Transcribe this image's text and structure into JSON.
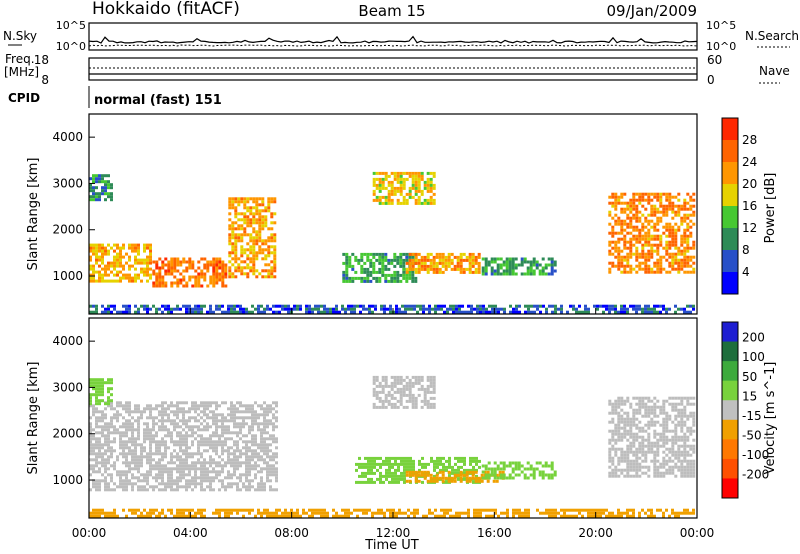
{
  "header": {
    "station": "Hokkaido (fitACF)",
    "beam": "Beam 15",
    "date": "09/Jan/2009"
  },
  "noise_panel": {
    "left_label": "N.Sky",
    "right_label": "N.Search",
    "left_ticks": [
      "10^5",
      "10^0"
    ],
    "right_ticks": [
      "10^5",
      "10^0"
    ]
  },
  "freq_panel": {
    "left_label_1": "Freq.",
    "left_label_2": "[MHz]",
    "right_label": "Nave",
    "left_ticks": [
      "18",
      "8"
    ],
    "right_ticks": [
      "60",
      "0"
    ],
    "freq_mhz": 8.0,
    "nave": 8
  },
  "cpid": {
    "label": "CPID",
    "text": "normal (fast) 151"
  },
  "x_axis": {
    "title": "Time UT",
    "tick_labels": [
      "00:00",
      "04:00",
      "08:00",
      "12:00",
      "16:00",
      "20:00",
      "00:00"
    ]
  },
  "colors": {
    "power_scale": [
      "#0000ff",
      "#2850c8",
      "#2e8b57",
      "#46c832",
      "#e6d200",
      "#ff9600",
      "#ff6400",
      "#ff2800"
    ],
    "velocity_scale": [
      "#1e1ed2",
      "#1e6e3c",
      "#3caa3c",
      "#78d23c",
      "#c0c0c0",
      "#f0a000",
      "#ff7800",
      "#ff5000",
      "#ff0000"
    ],
    "gray": "#bdbdbd"
  },
  "chart_data": [
    {
      "type": "heatmap",
      "title": "",
      "xlabel": "",
      "ylabel": "Slant Range [km]",
      "xlim": [
        0,
        24
      ],
      "ylim": [
        180,
        4500
      ],
      "y_ticks": [
        1000,
        2000,
        3000,
        4000
      ],
      "colorbar": {
        "label": "Power [dB]",
        "tick_labels": [
          "4",
          "8",
          "12",
          "16",
          "20",
          "24",
          "28"
        ],
        "range": [
          0,
          30
        ]
      },
      "regions": [
        {
          "t": [
            0.0,
            2.5
          ],
          "r": [
            820,
            1700
          ],
          "v": 19
        },
        {
          "t": [
            0.0,
            1.0
          ],
          "r": [
            2600,
            3200
          ],
          "v": 10
        },
        {
          "t": [
            2.5,
            5.5
          ],
          "r": [
            700,
            1400
          ],
          "v": 23
        },
        {
          "t": [
            5.5,
            7.5
          ],
          "r": [
            900,
            2700
          ],
          "v": 20
        },
        {
          "t": [
            11.2,
            13.8
          ],
          "r": [
            2500,
            3250
          ],
          "v": 18
        },
        {
          "t": [
            10.0,
            13.0
          ],
          "r": [
            800,
            1500
          ],
          "v": 11
        },
        {
          "t": [
            12.5,
            15.5
          ],
          "r": [
            1000,
            1500
          ],
          "v": 20
        },
        {
          "t": [
            15.5,
            18.5
          ],
          "r": [
            1000,
            1400
          ],
          "v": 11
        },
        {
          "t": [
            20.5,
            24.0
          ],
          "r": [
            1000,
            2800
          ],
          "v": 22
        },
        {
          "t": [
            0.0,
            24.0
          ],
          "r": [
            180,
            380
          ],
          "v": 6
        }
      ]
    },
    {
      "type": "heatmap",
      "title": "",
      "xlabel": "Time UT",
      "ylabel": "Slant Range [km]",
      "xlim": [
        0,
        24
      ],
      "ylim": [
        180,
        4500
      ],
      "y_ticks": [
        1000,
        2000,
        3000,
        4000
      ],
      "colorbar": {
        "label": "Velocity [m s^-1]",
        "tick_labels": [
          "200",
          "100",
          "50",
          "15",
          "-15",
          "-50",
          "-100",
          "-200"
        ],
        "range": [
          -250,
          250
        ]
      },
      "regions": [
        {
          "t": [
            0.0,
            7.5
          ],
          "r": [
            700,
            2700
          ],
          "v": 0
        },
        {
          "t": [
            0.0,
            1.0
          ],
          "r": [
            2600,
            3200
          ],
          "v": 40
        },
        {
          "t": [
            11.2,
            13.8
          ],
          "r": [
            2500,
            3250
          ],
          "v": 0
        },
        {
          "t": [
            10.5,
            15.5
          ],
          "r": [
            900,
            1500
          ],
          "v": 60
        },
        {
          "t": [
            12.5,
            16.5
          ],
          "r": [
            900,
            1200
          ],
          "v": -50
        },
        {
          "t": [
            15.5,
            18.5
          ],
          "r": [
            1000,
            1400
          ],
          "v": 40
        },
        {
          "t": [
            20.5,
            24.0
          ],
          "r": [
            1000,
            2800
          ],
          "v": 0
        },
        {
          "t": [
            0.0,
            24.0
          ],
          "r": [
            180,
            380
          ],
          "v": -60
        }
      ]
    }
  ]
}
